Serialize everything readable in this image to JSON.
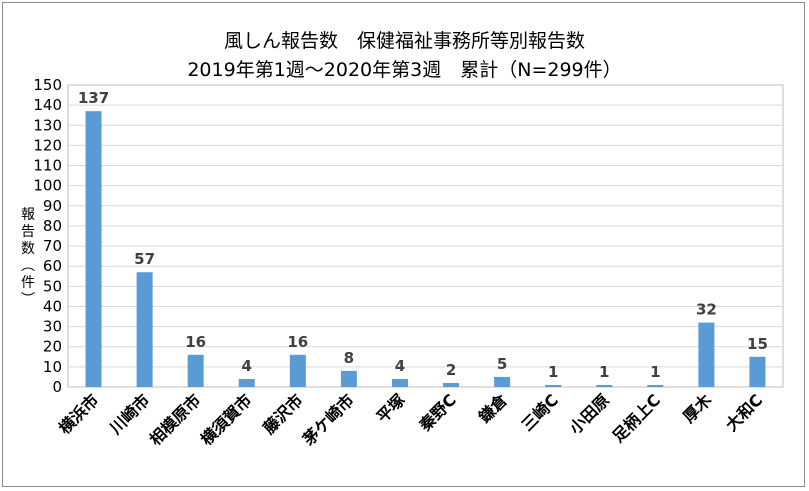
{
  "chart_data": {
    "type": "bar",
    "title": "風しん報告数　保健福祉事務所等別報告数",
    "subtitle": "2019年第1週～2020年第3週　累計（N=299件）",
    "ylabel": "報告数（件）",
    "xlabel": "",
    "ylim": [
      0,
      150
    ],
    "ytick_step": 10,
    "grid": true,
    "legend": "none",
    "bar_color": "#5b9bd5",
    "categories": [
      "横浜市",
      "川崎市",
      "相模原市",
      "横須賀市",
      "藤沢市",
      "茅ケ崎市",
      "平塚",
      "秦野C",
      "鎌倉",
      "三崎C",
      "小田原",
      "足柄上C",
      "厚木",
      "大和C"
    ],
    "values": [
      137,
      57,
      16,
      4,
      16,
      8,
      4,
      2,
      5,
      1,
      1,
      1,
      32,
      15
    ]
  }
}
